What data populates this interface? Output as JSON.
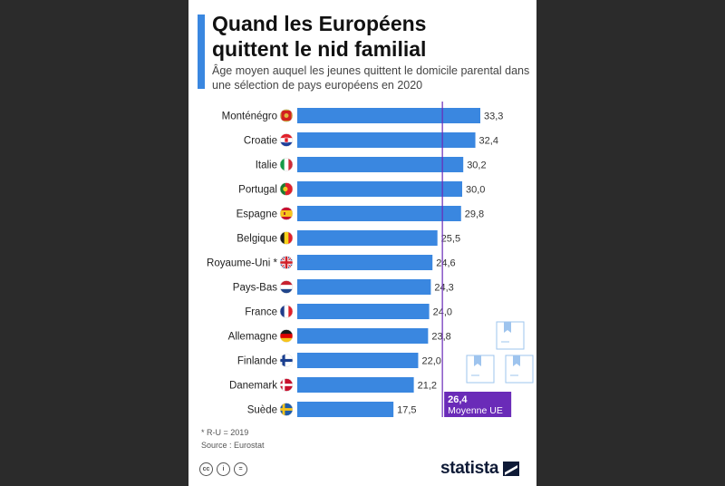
{
  "header": {
    "title": "Quand les Européens\nquittent le nid familial",
    "subtitle": "Âge moyen auquel les jeunes quittent le domicile parental dans une sélection de pays européens en 2020"
  },
  "chart_data": {
    "type": "bar",
    "orientation": "horizontal",
    "title": "Quand les Européens quittent le nid familial",
    "subtitle": "Âge moyen auquel les jeunes quittent le domicile parental dans une sélection de pays européens en 2020",
    "categories": [
      "Monténégro",
      "Croatie",
      "Italie",
      "Portugal",
      "Espagne",
      "Belgique",
      "Royaume-Uni *",
      "Pays-Bas",
      "France",
      "Allemagne",
      "Finlande",
      "Danemark",
      "Suède"
    ],
    "values": [
      33.3,
      32.4,
      30.2,
      30.0,
      29.8,
      25.5,
      24.6,
      24.3,
      24.0,
      23.8,
      22.0,
      21.2,
      17.5
    ],
    "value_labels": [
      "33,3",
      "32,4",
      "30,2",
      "30,0",
      "29,8",
      "25,5",
      "24,6",
      "24,3",
      "24,0",
      "23,8",
      "22,0",
      "21,2",
      "17,5"
    ],
    "flags": [
      "montenegro-flag",
      "croatia-flag",
      "italy-flag",
      "portugal-flag",
      "spain-flag",
      "belgium-flag",
      "uk-flag",
      "netherlands-flag",
      "france-flag",
      "germany-flag",
      "finland-flag",
      "denmark-flag",
      "sweden-flag"
    ],
    "xlim": [
      0,
      33.3
    ],
    "xlabel": "",
    "ylabel": "",
    "grid": false,
    "reference_line": {
      "value": 26.4,
      "label_value": "26,4",
      "label_text": "Moyenne UE"
    },
    "colors": {
      "bar": "#3a87e0",
      "reference": "#6a2bb8"
    }
  },
  "footer": {
    "footnote": "* R-U = 2019",
    "source": "Source : Eurostat",
    "license_icons": [
      "creative-commons-icon",
      "attribution-icon",
      "no-derivatives-icon"
    ],
    "brand": "statista"
  }
}
